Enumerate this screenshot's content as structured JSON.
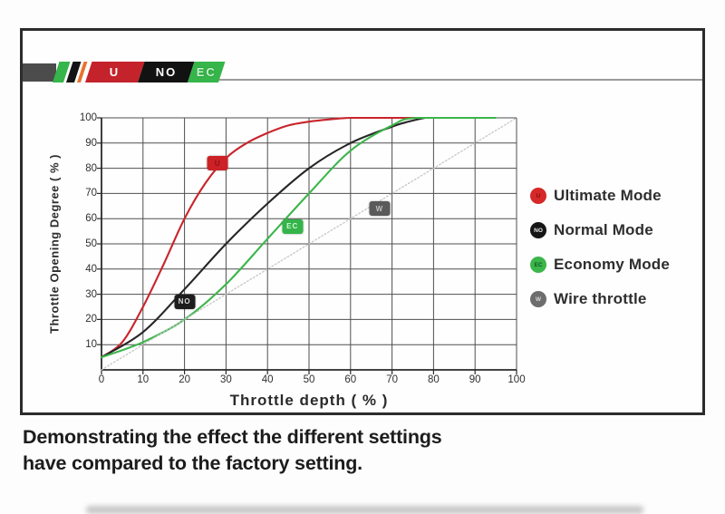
{
  "banner": {
    "segments": [
      {
        "label": "U"
      },
      {
        "label": "NO"
      },
      {
        "label": "EC"
      }
    ]
  },
  "chart_data": {
    "type": "line",
    "xlabel": "Throttle depth ( % )",
    "ylabel": "Throttle Opening Degree ( % )",
    "xlim": [
      0,
      100
    ],
    "ylim": [
      0,
      100
    ],
    "grid": true,
    "legend_position": "right",
    "x_ticks": [
      0,
      10,
      20,
      30,
      40,
      50,
      60,
      70,
      80,
      90,
      100
    ],
    "y_ticks": [
      10,
      20,
      30,
      40,
      50,
      60,
      70,
      80,
      90,
      100
    ],
    "series": [
      {
        "name": "Ultimate Mode",
        "badge": "U",
        "color": "#c9242b",
        "style": "solid",
        "badge_bg": "#cc2127",
        "badge_fg": "#8c1216",
        "badge_x": 28,
        "badge_y": 82,
        "x": [
          0,
          5,
          10,
          15,
          20,
          25,
          30,
          35,
          40,
          45,
          50,
          55,
          60,
          70,
          80
        ],
        "y": [
          5,
          11,
          25,
          42,
          60,
          74,
          84,
          90,
          94,
          97,
          98.5,
          99.4,
          100,
          100,
          100
        ]
      },
      {
        "name": "Normal Mode",
        "badge": "NO",
        "color": "#262626",
        "style": "solid",
        "badge_bg": "#1d1d1d",
        "badge_fg": "#d8d8d8",
        "badge_x": 20,
        "badge_y": 27,
        "x": [
          0,
          10,
          20,
          30,
          40,
          50,
          60,
          70,
          74,
          78,
          80
        ],
        "y": [
          5,
          15,
          32,
          50,
          66,
          80,
          90,
          96.5,
          98.5,
          100,
          100
        ]
      },
      {
        "name": "Economy Mode",
        "badge": "EC",
        "color": "#3cb54a",
        "style": "solid",
        "badge_bg": "#35b44a",
        "badge_fg": "#cff7d3",
        "badge_x": 46,
        "badge_y": 57,
        "x": [
          0,
          10,
          20,
          30,
          40,
          50,
          60,
          70,
          76,
          95
        ],
        "y": [
          5,
          11,
          20,
          34,
          52,
          70,
          87,
          97,
          100,
          100
        ]
      },
      {
        "name": "Wire throttle",
        "badge": "W",
        "color": "#c6c6c6",
        "style": "dotted",
        "badge_bg": "#5a5a5a",
        "badge_fg": "#c0c0c0",
        "badge_x": 67,
        "badge_y": 64,
        "x": [
          0,
          100
        ],
        "y": [
          0,
          100
        ]
      }
    ]
  },
  "legend": {
    "items": [
      {
        "badge": "U",
        "label": "Ultimate Mode",
        "color": "#d62828",
        "letter_color": "#7d1016"
      },
      {
        "badge": "NO",
        "label": "Normal Mode",
        "color": "#161616",
        "letter_color": "#e8e8e8"
      },
      {
        "badge": "EC",
        "label": "Economy Mode",
        "color": "#3cb54a",
        "letter_color": "#0e5c1d"
      },
      {
        "badge": "W",
        "label": "Wire throttle",
        "color": "#6d6d6d",
        "letter_color": "#d6d6d6"
      }
    ]
  },
  "caption": {
    "line1": "Demonstrating the effect the different settings",
    "line2": "have compared to the factory setting."
  }
}
